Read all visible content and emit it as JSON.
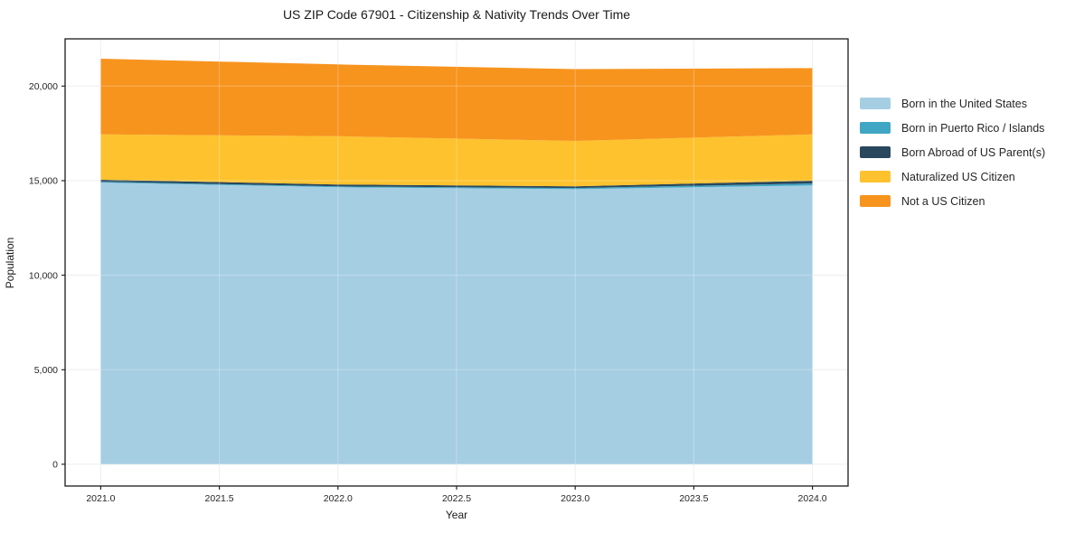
{
  "chart_data": {
    "type": "area",
    "stacked": true,
    "title": "US ZIP Code 67901 - Citizenship & Nativity Trends Over Time",
    "xlabel": "Year",
    "ylabel": "Population",
    "x": [
      2021,
      2022,
      2023,
      2024
    ],
    "series": [
      {
        "id": "born-us",
        "name": "Born in the United States",
        "color": "#a6cee3",
        "values": [
          14900,
          14650,
          14550,
          14750
        ]
      },
      {
        "id": "born-pr",
        "name": "Born in Puerto Rico / Islands",
        "color": "#41a6c3",
        "values": [
          40,
          50,
          60,
          100
        ]
      },
      {
        "id": "born-abroad",
        "name": "Born Abroad of US Parent(s)",
        "color": "#29485d",
        "values": [
          110,
          100,
          90,
          150
        ]
      },
      {
        "id": "naturalized",
        "name": "Naturalized US Citizen",
        "color": "#fdc22e",
        "values": [
          2400,
          2550,
          2400,
          2450
        ]
      },
      {
        "id": "not-citizen",
        "name": "Not a US Citizen",
        "color": "#f7941e",
        "values": [
          4000,
          3800,
          3800,
          3500
        ]
      }
    ],
    "xticks": [
      2021.0,
      2021.5,
      2022.0,
      2022.5,
      2023.0,
      2023.5,
      2024.0
    ],
    "yticks": [
      0,
      5000,
      10000,
      15000,
      20000
    ],
    "xlim": [
      2020.85,
      2024.15
    ],
    "ylim": [
      -1150,
      22500
    ],
    "grid": true,
    "legend_position": "right"
  }
}
